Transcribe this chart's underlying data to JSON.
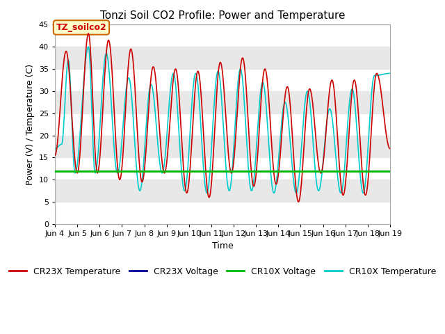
{
  "title": "Tonzi Soil CO2 Profile: Power and Temperature",
  "xlabel": "Time",
  "ylabel": "Power (V) / Temperature (C)",
  "ylim": [
    0,
    45
  ],
  "yticks": [
    0,
    5,
    10,
    15,
    20,
    25,
    30,
    35,
    40,
    45
  ],
  "xlim_start": 4,
  "xlim_end": 19,
  "xtick_labels": [
    "Jun 4",
    "Jun 5",
    "Jun 6",
    "Jun 7",
    "Jun 8",
    "Jun 9",
    "Jun 10",
    "Jun 11",
    "Jun 12",
    "Jun 13",
    "Jun 14",
    "Jun 15",
    "Jun 16",
    "Jun 17",
    "Jun 18",
    "Jun 19"
  ],
  "cr23x_temp_color": "#cc0000",
  "cr23x_volt_color": "#000099",
  "cr10x_volt_color": "#00bb00",
  "cr10x_temp_color": "#00cccc",
  "fig_bg_color": "#ffffff",
  "plot_bg_color": "#e8e8e8",
  "grid_color": "#ffffff",
  "annotation_border_color": "#cc6600",
  "annotation_fill_color": "#ffffcc",
  "annotation_text_color": "#cc0000",
  "annotation_text": "TZ_soilco2",
  "cr10x_volt_value": 12.0,
  "cr23x_volt_value": 11.9,
  "line_width": 1.2,
  "title_fontsize": 11,
  "label_fontsize": 9,
  "tick_fontsize": 8,
  "legend_fontsize": 9,
  "cr23x_peaks": [
    [
      4.5,
      39.0
    ],
    [
      5.5,
      43.0
    ],
    [
      6.4,
      41.5
    ],
    [
      7.4,
      39.5
    ],
    [
      8.4,
      35.5
    ],
    [
      9.4,
      35.0
    ],
    [
      10.4,
      34.5
    ],
    [
      11.4,
      36.5
    ],
    [
      12.4,
      37.5
    ],
    [
      13.4,
      35.0
    ],
    [
      14.4,
      31.0
    ],
    [
      15.4,
      30.5
    ],
    [
      16.4,
      32.5
    ],
    [
      17.4,
      32.5
    ],
    [
      18.4,
      34.0
    ]
  ],
  "cr23x_troughs": [
    [
      4.0,
      15.5
    ],
    [
      5.0,
      11.5
    ],
    [
      5.9,
      11.5
    ],
    [
      6.9,
      10.0
    ],
    [
      7.9,
      9.5
    ],
    [
      8.9,
      11.5
    ],
    [
      9.9,
      7.0
    ],
    [
      10.9,
      6.0
    ],
    [
      11.9,
      11.5
    ],
    [
      12.9,
      8.5
    ],
    [
      13.9,
      9.0
    ],
    [
      14.9,
      5.0
    ],
    [
      15.9,
      11.5
    ],
    [
      16.9,
      6.5
    ],
    [
      17.9,
      6.5
    ],
    [
      19.0,
      17.0
    ]
  ],
  "cr10x_peaks": [
    [
      4.3,
      18.0
    ],
    [
      4.6,
      37.0
    ],
    [
      5.5,
      40.0
    ],
    [
      6.3,
      38.5
    ],
    [
      7.3,
      33.0
    ],
    [
      8.3,
      31.5
    ],
    [
      9.3,
      34.0
    ],
    [
      10.3,
      34.0
    ],
    [
      11.3,
      34.5
    ],
    [
      12.3,
      35.0
    ],
    [
      13.3,
      32.0
    ],
    [
      14.3,
      27.5
    ],
    [
      15.3,
      30.0
    ],
    [
      16.3,
      26.0
    ],
    [
      17.3,
      30.5
    ],
    [
      18.3,
      33.5
    ]
  ],
  "cr10x_troughs": [
    [
      4.0,
      17.0
    ],
    [
      4.9,
      11.5
    ],
    [
      5.8,
      11.5
    ],
    [
      6.8,
      11.5
    ],
    [
      7.8,
      7.5
    ],
    [
      8.8,
      11.5
    ],
    [
      9.8,
      7.5
    ],
    [
      10.8,
      7.0
    ],
    [
      11.8,
      7.5
    ],
    [
      12.8,
      7.5
    ],
    [
      13.8,
      7.0
    ],
    [
      14.8,
      7.0
    ],
    [
      15.8,
      7.5
    ],
    [
      16.8,
      7.0
    ],
    [
      17.8,
      7.0
    ],
    [
      19.0,
      34.0
    ]
  ]
}
